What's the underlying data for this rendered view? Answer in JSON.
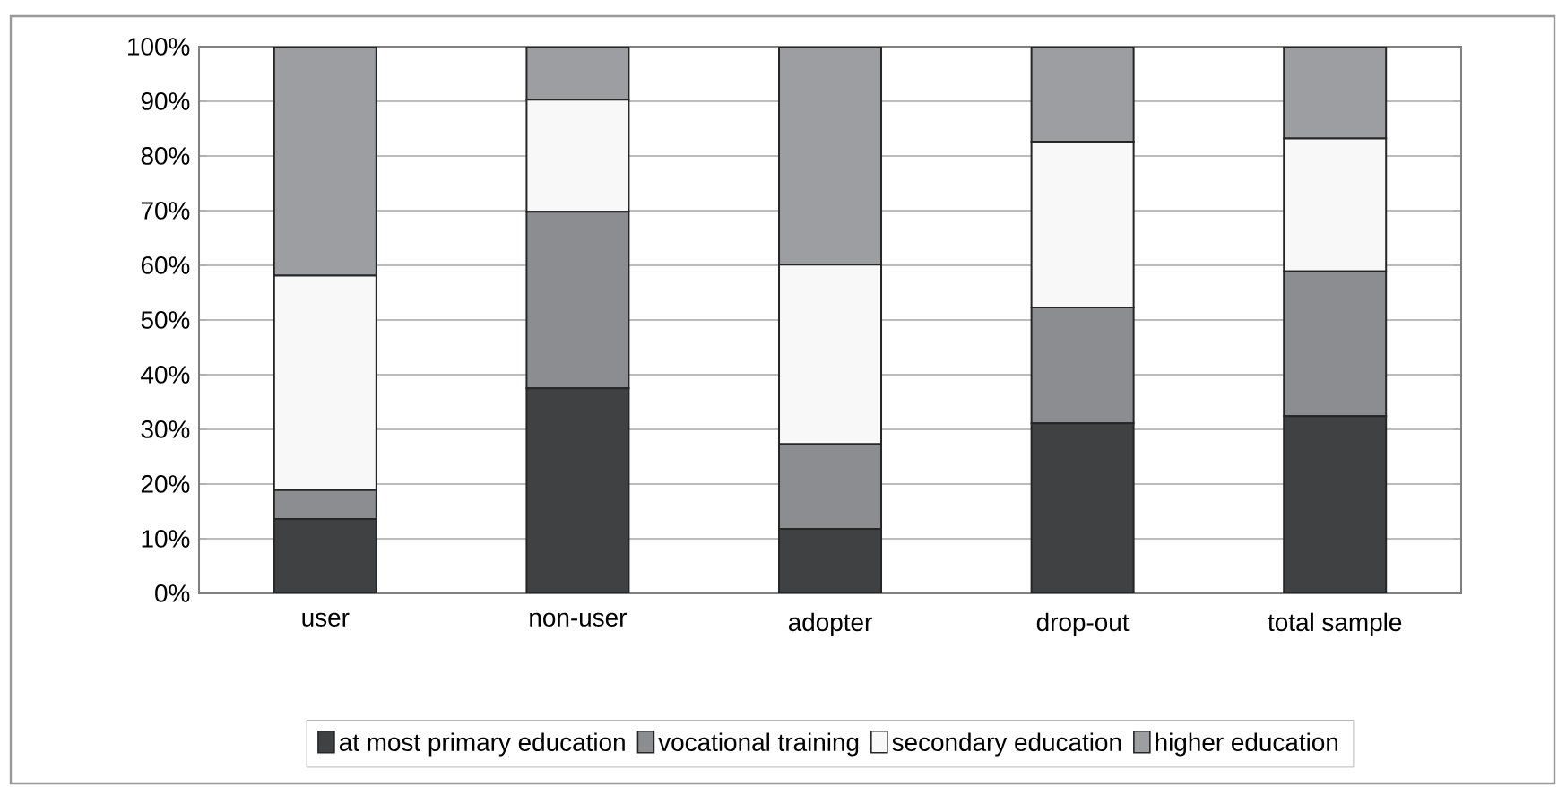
{
  "chart_data": {
    "type": "bar",
    "stacked": true,
    "categories": [
      "user",
      "non-user",
      "adopter",
      "drop-out",
      "total sample"
    ],
    "series": [
      {
        "name": "at most primary education",
        "color": "#404143",
        "values": [
          13.6,
          37.5,
          11.8,
          31.1,
          32.4
        ]
      },
      {
        "name": "vocational training",
        "color": "#8c8d90",
        "values": [
          5.3,
          32.3,
          15.5,
          21.2,
          26.5
        ]
      },
      {
        "name": "secondary education",
        "color": "#f8f8f8",
        "values": [
          39.2,
          20.5,
          32.8,
          30.3,
          24.3
        ]
      },
      {
        "name": "higher education",
        "color": "#9d9ea1",
        "values": [
          41.9,
          9.7,
          39.9,
          17.4,
          16.8
        ]
      }
    ],
    "ylim": [
      0,
      100
    ],
    "yticks": [
      {
        "value": 0,
        "label": "0%"
      },
      {
        "value": 10,
        "label": "10%"
      },
      {
        "value": 20,
        "label": "20%"
      },
      {
        "value": 30,
        "label": "30%"
      },
      {
        "value": 40,
        "label": "40%"
      },
      {
        "value": 50,
        "label": "50%"
      },
      {
        "value": 60,
        "label": "60%"
      },
      {
        "value": 70,
        "label": "70%"
      },
      {
        "value": 80,
        "label": "80%"
      },
      {
        "value": 90,
        "label": "90%"
      },
      {
        "value": 100,
        "label": "100%"
      }
    ],
    "grid": "y",
    "legend": "bottom"
  }
}
